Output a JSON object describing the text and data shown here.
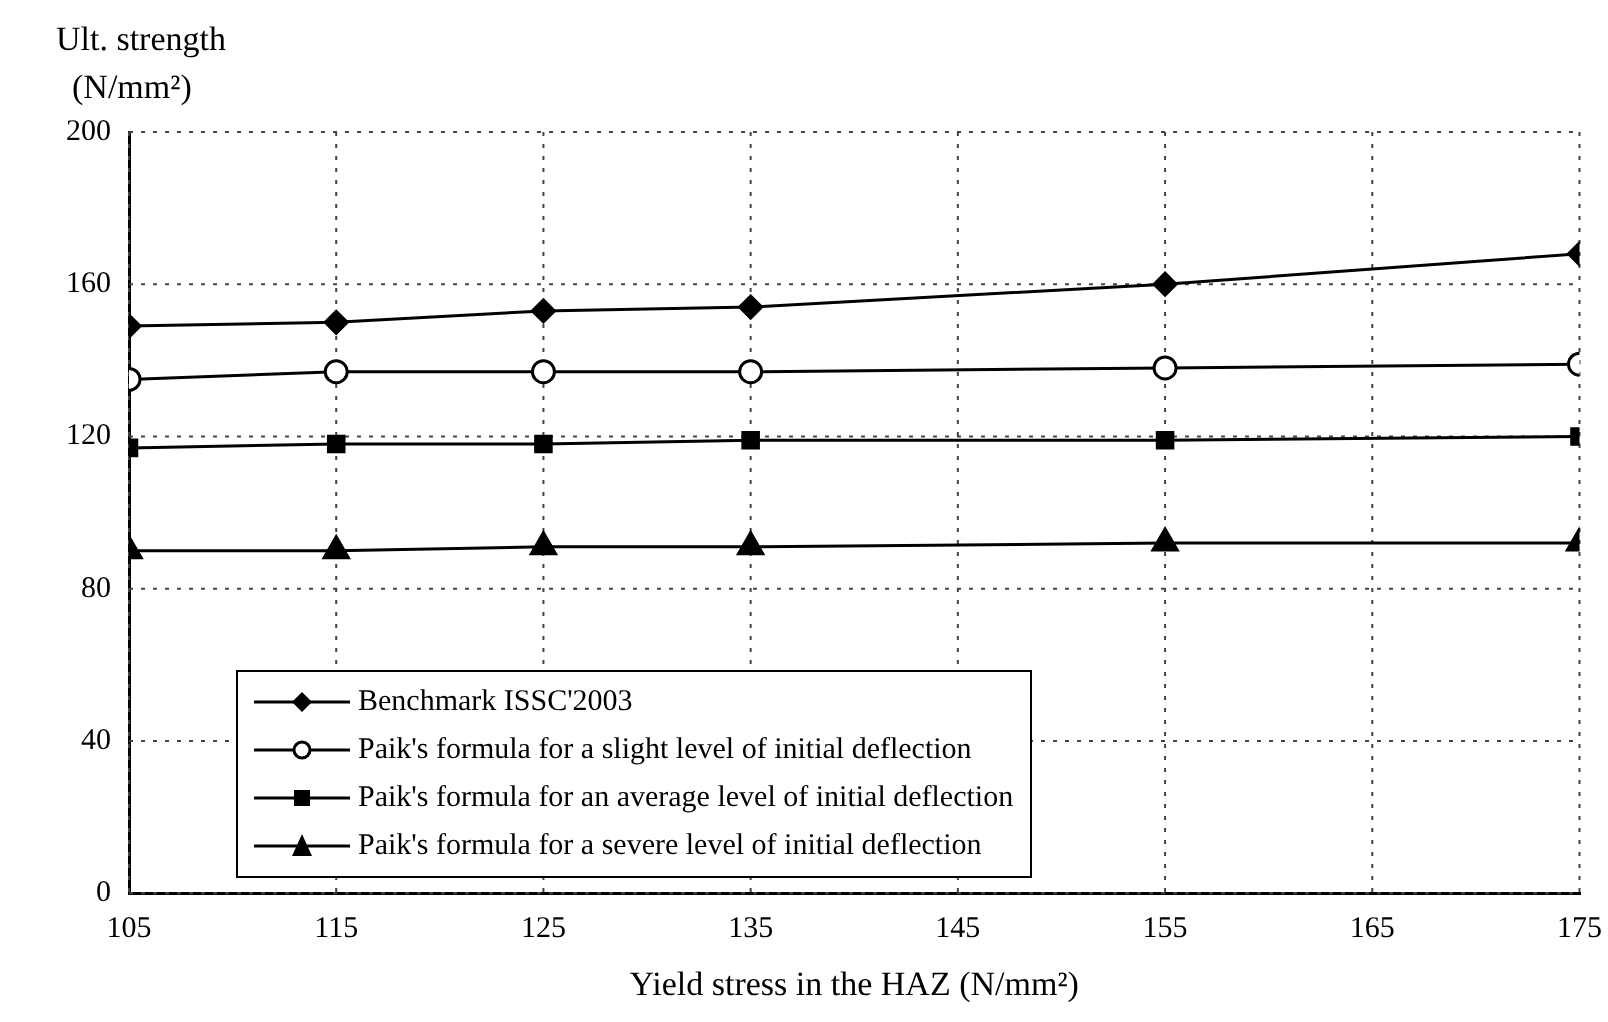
{
  "chart_data": {
    "type": "line",
    "ylabel": "Ult. strength (N/mm²)",
    "xlabel": "Yield stress in the HAZ (N/mm²)",
    "x": [
      105,
      115,
      125,
      135,
      155,
      175
    ],
    "xlim": [
      105,
      175
    ],
    "xticks": [
      105,
      115,
      125,
      135,
      145,
      155,
      165,
      175
    ],
    "ylim": [
      0,
      200
    ],
    "yticks": [
      0,
      40,
      80,
      120,
      160,
      200
    ],
    "grid": true,
    "legend": "bottom left",
    "line_style": "solid",
    "series": [
      {
        "name": "Benchmark ISSC'2003",
        "color": "#000000",
        "marker": "diamond",
        "values": [
          149,
          150,
          153,
          154,
          160,
          168
        ]
      },
      {
        "name": "Paik's formula for a slight level of initial deflection",
        "color": "#000000",
        "marker": "circle",
        "values": [
          135,
          137,
          137,
          137,
          138,
          139
        ]
      },
      {
        "name": "Paik's formula for an average level of initial deflection",
        "color": "#000000",
        "marker": "square",
        "values": [
          117,
          118,
          118,
          119,
          119,
          120
        ]
      },
      {
        "name": "Paik's formula for a severe level of initial deflection",
        "color": "#000000",
        "marker": "triangle",
        "values": [
          90,
          90,
          91,
          91,
          92,
          92
        ]
      }
    ]
  }
}
